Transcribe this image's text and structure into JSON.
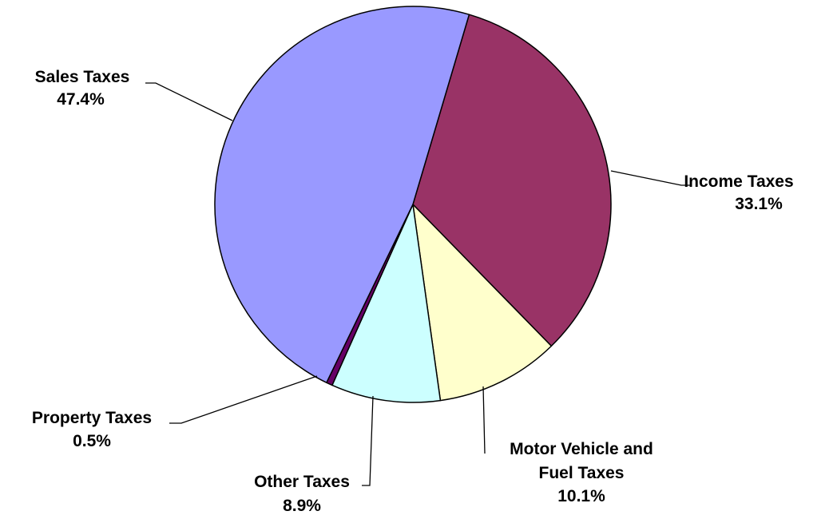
{
  "chart_data": {
    "type": "pie",
    "title": "",
    "start_angle_deg": 16.5,
    "slices": [
      {
        "name": "Income Taxes",
        "value": 33.1,
        "value_label": "33.1%",
        "color": "#993366",
        "label_lines": [
          "Income Taxes"
        ]
      },
      {
        "name": "Motor Vehicle and Fuel Taxes",
        "value": 10.1,
        "value_label": "10.1%",
        "color": "#FFFFCC",
        "label_lines": [
          "Motor Vehicle and",
          "Fuel Taxes"
        ]
      },
      {
        "name": "Other Taxes",
        "value": 8.9,
        "value_label": "8.9%",
        "color": "#CCFFFF",
        "label_lines": [
          "Other Taxes"
        ]
      },
      {
        "name": "Property Taxes",
        "value": 0.5,
        "value_label": "0.5%",
        "color": "#660066",
        "label_lines": [
          "Property Taxes"
        ]
      },
      {
        "name": "Sales Taxes",
        "value": 47.4,
        "value_label": "47.4%",
        "color": "#9999FF",
        "label_lines": [
          "Sales Taxes"
        ]
      }
    ],
    "legend": "none",
    "border_color": "#000000"
  }
}
